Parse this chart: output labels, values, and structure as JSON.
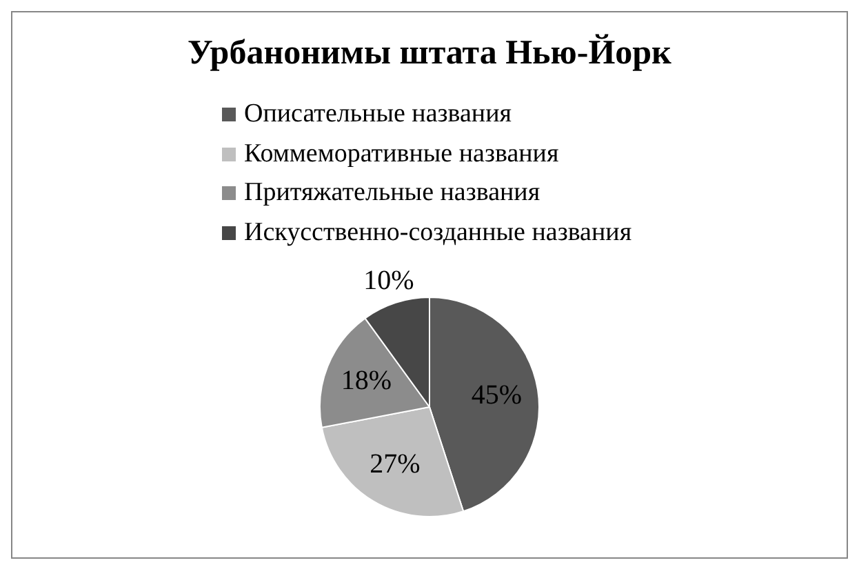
{
  "chart_data": {
    "type": "pie",
    "title": "Урбанонимы штата Нью-Йорк",
    "categories": [
      "Описательные названия",
      "Коммеморативные названия",
      "Притяжательные названия",
      "Искусственно-созданные названия"
    ],
    "values": [
      45,
      27,
      18,
      10
    ],
    "colors": [
      "#595959",
      "#bfbfbf",
      "#8c8c8c",
      "#474747"
    ],
    "value_labels": [
      "45%",
      "27%",
      "18%",
      "10%"
    ],
    "legend": "top"
  }
}
